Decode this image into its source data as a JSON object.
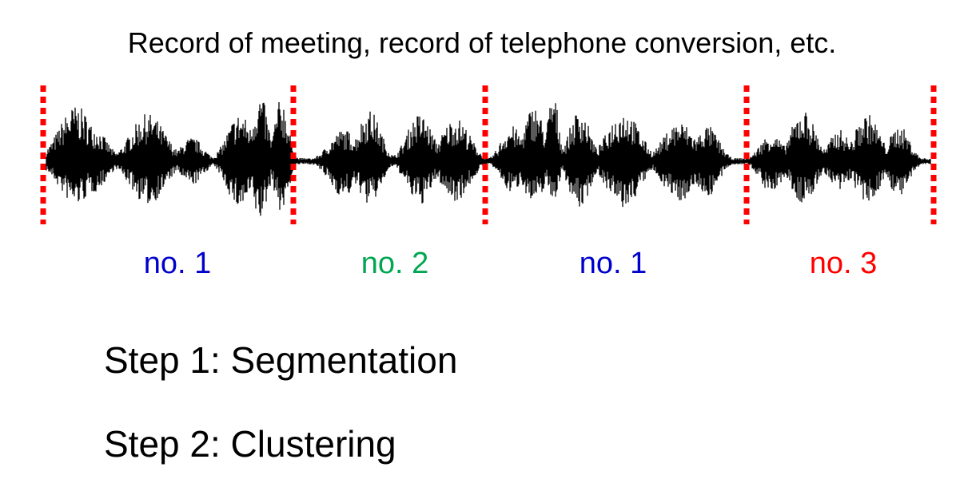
{
  "caption": "Record of meeting, record of telephone conversion, etc.",
  "segments": [
    {
      "label": "no. 1",
      "color": "#0000cc"
    },
    {
      "label": "no. 2",
      "color": "#00a651"
    },
    {
      "label": "no. 1",
      "color": "#0000cc"
    },
    {
      "label": "no. 3",
      "color": "#ff0000"
    }
  ],
  "boundary_color": "#ff0000",
  "waveform_color": "#000000",
  "steps": [
    "Step 1: Segmentation",
    "Step 2: Clustering"
  ]
}
